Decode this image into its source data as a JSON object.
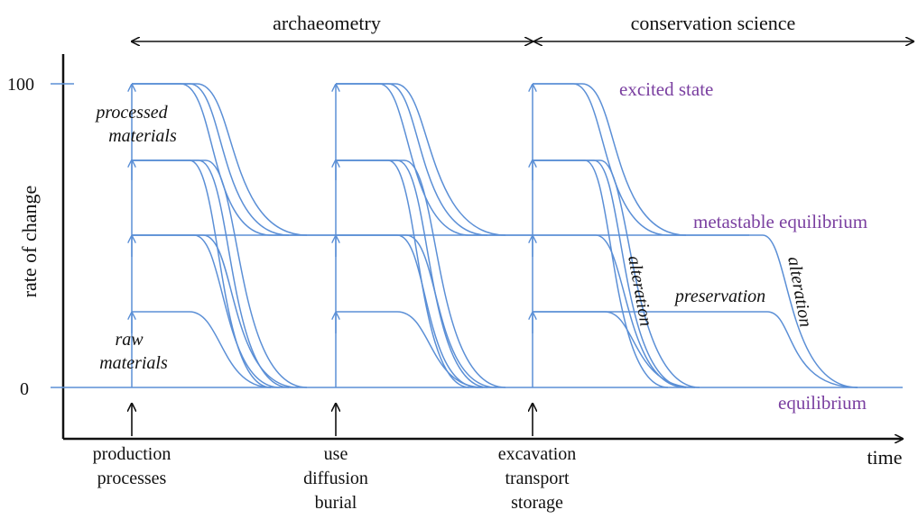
{
  "header": {
    "left_span": "archaeometry",
    "right_span": "conservation science"
  },
  "axes": {
    "ylabel": "rate of change",
    "xlabel": "time",
    "ytick_high": "100",
    "ytick_low": "0"
  },
  "states": {
    "excited": "excited state",
    "metastable": "metastable equilibrium",
    "equilibrium": "equilibrium"
  },
  "annotations": {
    "processed": [
      "processed",
      "materials"
    ],
    "raw": [
      "raw",
      "materials"
    ],
    "alteration_1": "alteration",
    "alteration_2": "alteration",
    "preservation": "preservation"
  },
  "events": {
    "production": [
      "production",
      "processes"
    ],
    "use": [
      "use",
      "diffusion",
      "burial"
    ],
    "excavation": [
      "excavation",
      "transport",
      "storage"
    ]
  },
  "colors": {
    "curve": "#5b8fd6",
    "axis": "#111111",
    "state_label": "#7a3fa0"
  }
}
